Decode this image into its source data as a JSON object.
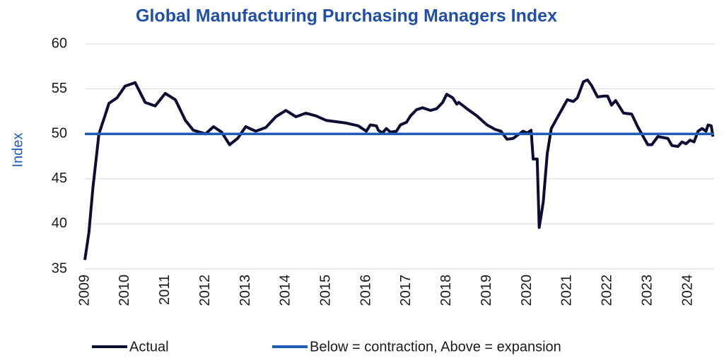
{
  "chart_data": {
    "type": "line",
    "title": "Global Manufacturing Purchasing Managers Index",
    "y_label": "Index",
    "x": [
      2009.0,
      2009.1,
      2009.2,
      2009.3,
      2009.35,
      2009.5,
      2009.6,
      2009.8,
      2010.0,
      2010.25,
      2010.5,
      2010.75,
      2011.0,
      2011.25,
      2011.5,
      2011.7,
      2012.0,
      2012.2,
      2012.4,
      2012.6,
      2012.8,
      2013.0,
      2013.25,
      2013.5,
      2013.75,
      2014.0,
      2014.25,
      2014.5,
      2014.75,
      2015.0,
      2015.5,
      2015.8,
      2016.0,
      2016.1,
      2016.25,
      2016.3,
      2016.4,
      2016.5,
      2016.6,
      2016.75,
      2016.85,
      2017.0,
      2017.1,
      2017.25,
      2017.4,
      2017.6,
      2017.75,
      2017.9,
      2018.0,
      2018.15,
      2018.25,
      2018.3,
      2018.5,
      2018.75,
      2019.0,
      2019.2,
      2019.35,
      2019.5,
      2019.65,
      2019.9,
      2020.0,
      2020.1,
      2020.15,
      2020.25,
      2020.3,
      2020.4,
      2020.5,
      2020.6,
      2020.75,
      2021.0,
      2021.15,
      2021.25,
      2021.4,
      2021.5,
      2021.6,
      2021.75,
      2021.9,
      2022.0,
      2022.1,
      2022.2,
      2022.4,
      2022.6,
      2022.75,
      2022.9,
      2023.0,
      2023.1,
      2023.25,
      2023.5,
      2023.6,
      2023.75,
      2023.85,
      2023.95,
      2024.05,
      2024.15,
      2024.25,
      2024.35,
      2024.45,
      2024.5,
      2024.58,
      2024.62
    ],
    "series": [
      {
        "name": "Actual",
        "color": "#0d0d33",
        "values": [
          36,
          39,
          44,
          48,
          50,
          52,
          53.4,
          54,
          55.3,
          55.7,
          53.5,
          53.1,
          54.5,
          53.8,
          51.5,
          50.4,
          50.0,
          50.8,
          50.2,
          48.8,
          49.5,
          50.8,
          50.3,
          50.7,
          51.9,
          52.6,
          51.9,
          52.3,
          52.0,
          51.5,
          51.2,
          50.9,
          50.3,
          51.0,
          50.9,
          50.4,
          50.1,
          50.6,
          50.2,
          50.3,
          51.0,
          51.3,
          52.0,
          52.7,
          52.9,
          52.6,
          52.8,
          53.5,
          54.4,
          54.0,
          53.3,
          53.5,
          52.8,
          52.0,
          51.0,
          50.5,
          50.3,
          49.4,
          49.5,
          50.3,
          50.1,
          50.4,
          47.2,
          47.2,
          39.6,
          42.4,
          47.8,
          50.6,
          51.8,
          53.8,
          53.6,
          54.0,
          55.8,
          56.0,
          55.4,
          54.1,
          54.2,
          54.2,
          53.2,
          53.7,
          52.3,
          52.2,
          50.8,
          49.6,
          48.8,
          48.8,
          49.7,
          49.5,
          48.7,
          48.6,
          49.1,
          48.9,
          49.3,
          49.1,
          50.3,
          50.6,
          50.3,
          51.0,
          50.9,
          49.7
        ]
      },
      {
        "name": "Below = contraction, Above = expansion",
        "color": "#1f5bb8",
        "x": [
          2009,
          2024.65
        ],
        "values": [
          50,
          50
        ]
      }
    ],
    "xlim": [
      2009,
      2024.65
    ],
    "xticks": [
      2009,
      2010,
      2011,
      2012,
      2013,
      2014,
      2015,
      2016,
      2017,
      2018,
      2019,
      2020,
      2021,
      2022,
      2023,
      2024
    ],
    "ylim": [
      35,
      60
    ],
    "yticks": [
      35,
      40,
      45,
      50,
      55,
      60
    ],
    "grid": true
  }
}
